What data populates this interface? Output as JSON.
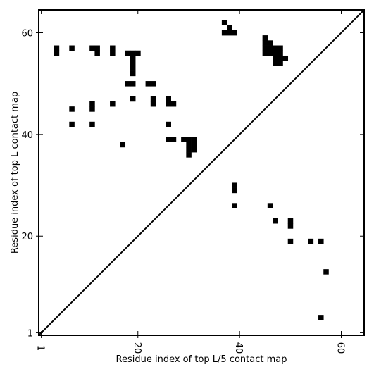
{
  "chart_data": {
    "type": "heatmap",
    "title": "",
    "xlabel": "Residue index of top L/5 contact map",
    "ylabel": "Residue index of top L contact map",
    "xlim": [
      0.5,
      64.5
    ],
    "ylim": [
      0.5,
      64.5
    ],
    "xticks": [
      {
        "value": 1,
        "label": "1"
      },
      {
        "value": 20,
        "label": "20"
      },
      {
        "value": 40,
        "label": "40"
      },
      {
        "value": 60,
        "label": "60"
      }
    ],
    "yticks": [
      {
        "value": 1,
        "label": "1"
      },
      {
        "value": 20,
        "label": "20"
      },
      {
        "value": 40,
        "label": "40"
      },
      {
        "value": 60,
        "label": "60"
      }
    ],
    "diagonal": true,
    "grid": false,
    "cell_color": "#000000",
    "background_color": "#ffffff",
    "contacts_upper": [
      [
        4,
        56
      ],
      [
        4,
        57
      ],
      [
        7,
        57
      ],
      [
        11,
        57
      ],
      [
        12,
        57
      ],
      [
        12,
        56
      ],
      [
        15,
        57
      ],
      [
        15,
        56
      ],
      [
        18,
        56
      ],
      [
        19,
        56
      ],
      [
        20,
        56
      ],
      [
        19,
        55
      ],
      [
        19,
        54
      ],
      [
        19,
        53
      ],
      [
        19,
        52
      ],
      [
        18,
        50
      ],
      [
        19,
        50
      ],
      [
        22,
        50
      ],
      [
        23,
        50
      ],
      [
        19,
        47
      ],
      [
        23,
        47
      ],
      [
        23,
        46
      ],
      [
        26,
        47
      ],
      [
        26,
        46
      ],
      [
        27,
        46
      ],
      [
        7,
        45
      ],
      [
        11,
        46
      ],
      [
        11,
        45
      ],
      [
        15,
        46
      ],
      [
        7,
        42
      ],
      [
        11,
        42
      ],
      [
        26,
        42
      ],
      [
        17,
        38
      ],
      [
        26,
        39
      ],
      [
        27,
        39
      ],
      [
        29,
        39
      ],
      [
        30,
        39
      ],
      [
        31,
        39
      ],
      [
        30,
        38
      ],
      [
        31,
        38
      ],
      [
        30,
        37
      ],
      [
        31,
        37
      ],
      [
        30,
        36
      ],
      [
        37,
        62
      ],
      [
        38,
        61
      ],
      [
        37,
        60
      ],
      [
        38,
        60
      ],
      [
        39,
        60
      ],
      [
        45,
        59
      ],
      [
        45,
        58
      ],
      [
        46,
        58
      ],
      [
        45,
        57
      ],
      [
        46,
        57
      ],
      [
        47,
        57
      ],
      [
        48,
        57
      ],
      [
        45,
        56
      ],
      [
        46,
        56
      ],
      [
        47,
        56
      ],
      [
        48,
        56
      ],
      [
        47,
        55
      ],
      [
        48,
        55
      ],
      [
        49,
        55
      ],
      [
        47,
        54
      ],
      [
        48,
        54
      ]
    ],
    "contacts_lower": [
      [
        39,
        30
      ],
      [
        39,
        29
      ],
      [
        39,
        26
      ],
      [
        46,
        26
      ],
      [
        47,
        23
      ],
      [
        50,
        23
      ],
      [
        50,
        22
      ],
      [
        50,
        19
      ],
      [
        54,
        19
      ],
      [
        56,
        19
      ],
      [
        57,
        13
      ],
      [
        56,
        4
      ]
    ]
  }
}
